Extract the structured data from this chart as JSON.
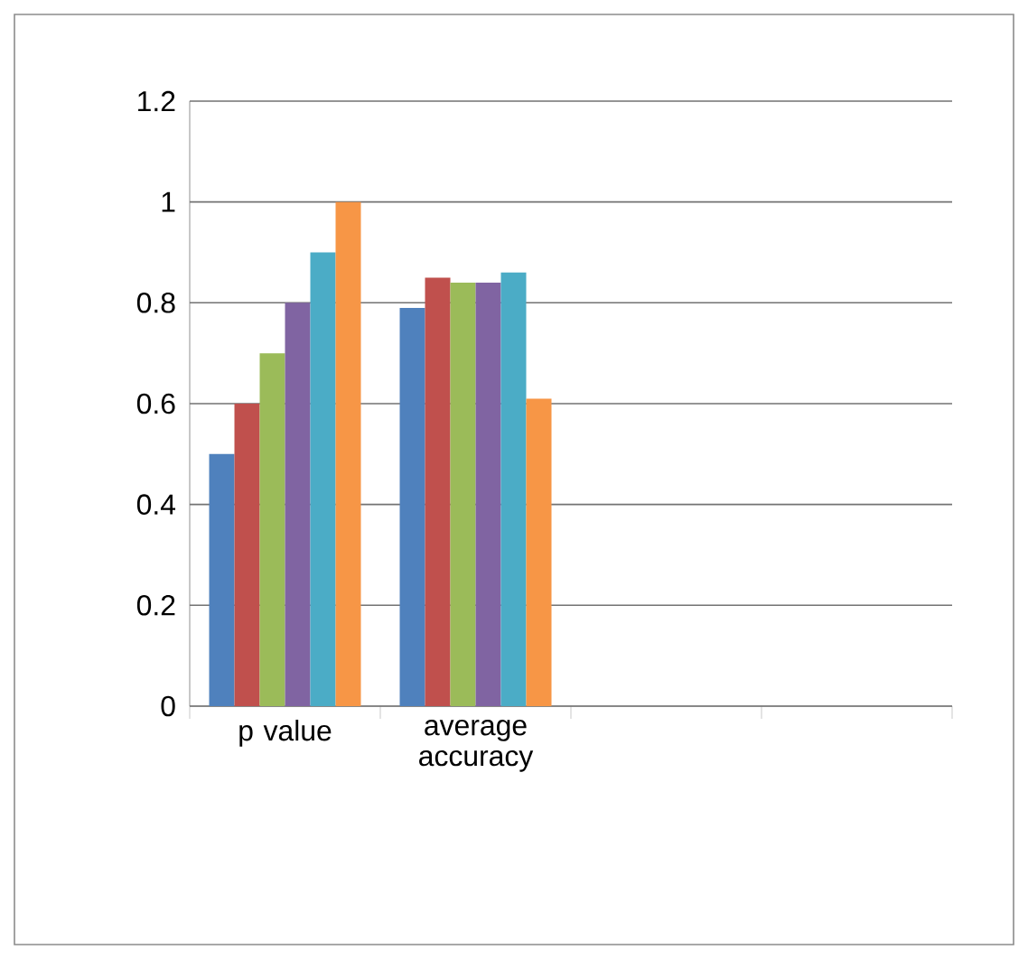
{
  "chart_data": {
    "type": "bar",
    "categories": [
      "p value",
      "average accuracy",
      null,
      null
    ],
    "series": [
      {
        "color": "#4f81bd",
        "values": [
          0.5,
          0.79,
          null,
          null
        ]
      },
      {
        "color": "#c0504d",
        "values": [
          0.6,
          0.85,
          null,
          null
        ]
      },
      {
        "color": "#9bbb59",
        "values": [
          0.7,
          0.84,
          null,
          null
        ]
      },
      {
        "color": "#8064a2",
        "values": [
          0.8,
          0.84,
          null,
          null
        ]
      },
      {
        "color": "#4bacc6",
        "values": [
          0.9,
          0.86,
          null,
          null
        ]
      },
      {
        "color": "#f79646",
        "values": [
          1.0,
          0.61,
          null,
          null
        ]
      }
    ],
    "ylim": [
      0,
      1.2
    ],
    "yticks": [
      0,
      0.2,
      0.4,
      0.6,
      0.8,
      1,
      1.2
    ],
    "grid": "y"
  }
}
